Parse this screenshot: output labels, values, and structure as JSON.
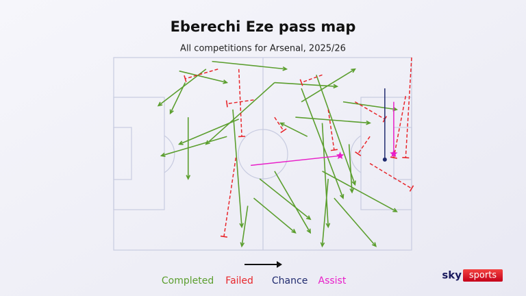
{
  "chart_data": {
    "type": "pass-map",
    "title": "Eberechi Eze pass map",
    "subtitle": "All competitions for Arsenal, 2025/26",
    "xlim": [
      0,
      100
    ],
    "ylim": [
      0,
      100
    ],
    "series": [
      {
        "name": "Completed",
        "color": "#5b9e2e",
        "style": "arrow",
        "x": [
          31,
          22,
          42,
          33,
          63,
          65,
          54,
          70,
          61,
          38,
          49,
          45,
          54,
          70,
          74,
          47,
          54,
          24,
          77,
          63,
          40,
          68,
          25,
          72,
          79
        ],
        "y": [
          6,
          7,
          32,
          2,
          23,
          41,
          13,
          34,
          31,
          41,
          63,
          77,
          59,
          59,
          73,
          73,
          13,
          13,
          23,
          16,
          27,
          9,
          31,
          63,
          45
        ],
        "x_end": [
          15,
          38,
          22,
          58,
          81,
          56,
          31,
          72,
          86,
          16,
          66,
          43,
          66,
          95,
          88,
          61,
          75,
          19,
          95,
          77,
          43,
          81,
          25,
          70,
          80
        ],
        "y_end": [
          25,
          13,
          45,
          6,
          6,
          34,
          45,
          88,
          34,
          51,
          84,
          98,
          91,
          80,
          98,
          91,
          15,
          29,
          27,
          73,
          88,
          66,
          63,
          98,
          70
        ]
      },
      {
        "name": "Failed",
        "color": "#e8262b",
        "style": "tbar",
        "x": [
          42,
          35,
          41,
          72,
          81,
          100,
          98,
          86,
          54,
          86,
          70,
          47
        ],
        "y": [
          6,
          6,
          52,
          27,
          23,
          0,
          20,
          55,
          31,
          41,
          9,
          22
        ],
        "x_end": [
          43,
          24,
          37,
          74,
          91,
          98,
          94,
          100,
          57,
          82,
          63,
          38
        ],
        "y_end": [
          41,
          11,
          93,
          48,
          32,
          52,
          52,
          68,
          38,
          50,
          13,
          24
        ]
      },
      {
        "name": "Chance",
        "color": "#1f2a6e",
        "style": "dot",
        "x": [
          91
        ],
        "y": [
          16
        ],
        "x_end": [
          91
        ],
        "y_end": [
          53
        ]
      },
      {
        "name": "Assist",
        "color": "#e81ec8",
        "style": "star",
        "x": [
          46,
          94
        ],
        "y": [
          56,
          23
        ],
        "x_end": [
          76,
          94
        ],
        "y_end": [
          51,
          50
        ]
      }
    ]
  },
  "logo": {
    "sky": "sky",
    "sports": "sports"
  }
}
